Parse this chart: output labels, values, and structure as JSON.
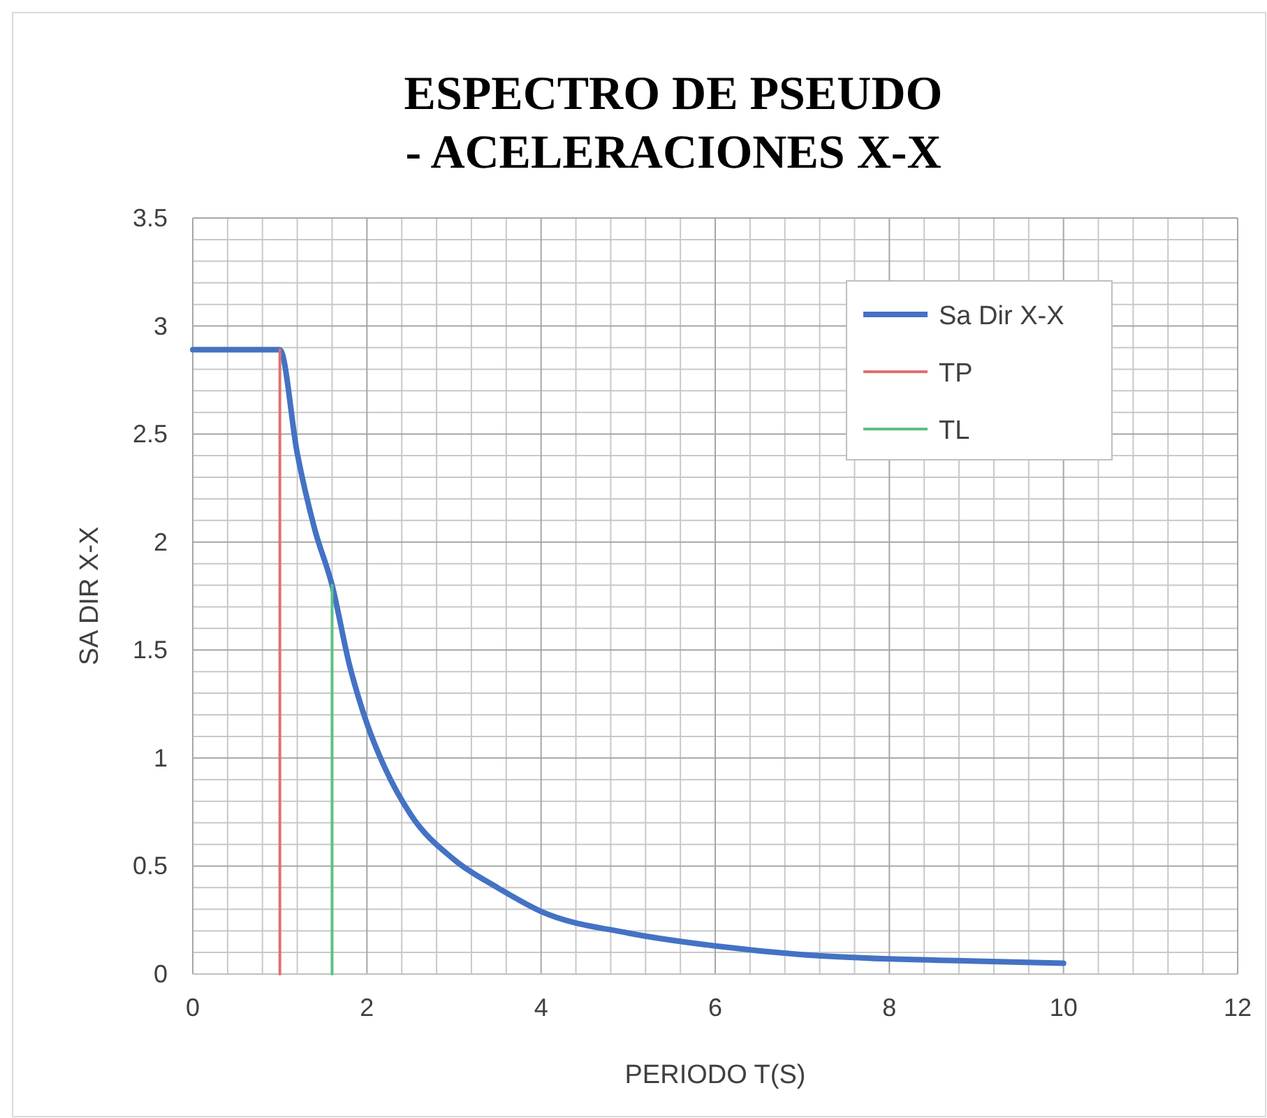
{
  "chart_data": {
    "type": "line",
    "title": "ESPECTRO DE PSEUDO - ACELERACIONES X-X",
    "xlabel": "PERIODO T(S)",
    "ylabel": "SA DIR X-X",
    "xlim": [
      0,
      12
    ],
    "xticks": [
      0,
      2,
      4,
      6,
      8,
      10,
      12
    ],
    "ylim": [
      0,
      3.5
    ],
    "yticks": [
      0,
      0.5,
      1,
      1.5,
      2,
      2.5,
      3,
      3.5
    ],
    "grid": true,
    "legend": "top right",
    "marker": "none",
    "line_style": "solid",
    "series": [
      {
        "name": "Sa Dir X-X",
        "color": "#4472c4",
        "x": [
          0,
          0.5,
          1,
          1.2,
          1.4,
          1.6,
          1.8,
          2,
          2.2,
          2.5,
          3,
          3.5,
          4,
          5,
          6,
          7,
          8,
          9,
          10
        ],
        "values": [
          2.89,
          2.89,
          2.89,
          2.41,
          2.06,
          1.8,
          1.43,
          1.16,
          0.96,
          0.74,
          0.53,
          0.4,
          0.29,
          0.19,
          0.13,
          0.09,
          0.07,
          0.06,
          0.05
        ]
      },
      {
        "name": "TP",
        "color": "#e07070",
        "x": [
          1,
          1
        ],
        "values": [
          0,
          2.89
        ]
      },
      {
        "name": "TL",
        "color": "#5cc084",
        "x": [
          1.6,
          1.6
        ],
        "values": [
          0,
          1.8
        ]
      }
    ]
  }
}
